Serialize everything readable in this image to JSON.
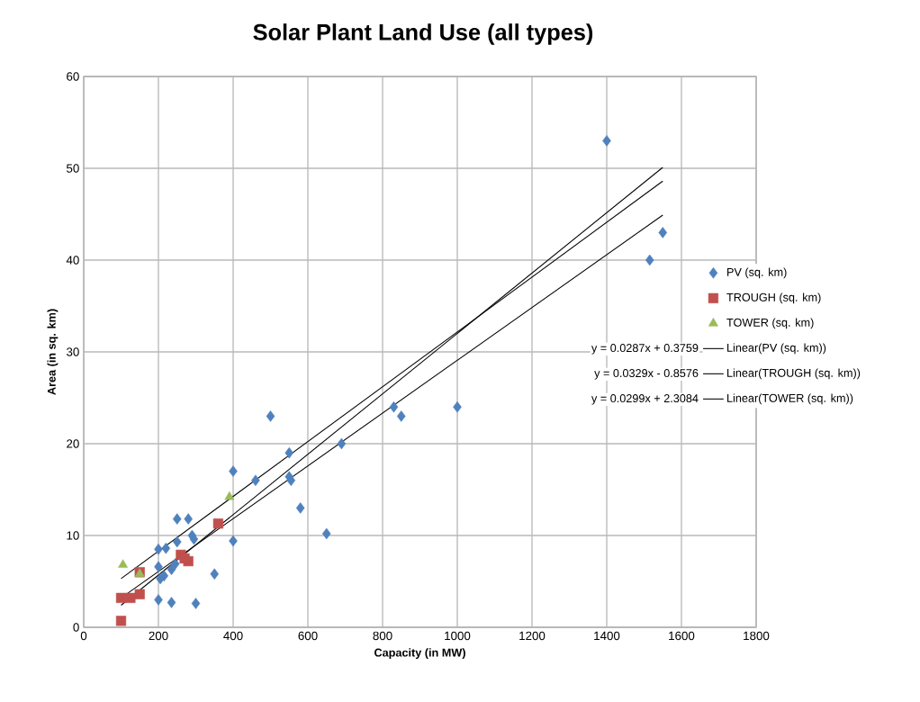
{
  "chart_data": {
    "type": "scatter",
    "title": "Solar Plant Land Use (all types)",
    "xlabel": "Capacity (in MW)",
    "ylabel": "Area (in sq. km)",
    "xlim": [
      0,
      1800
    ],
    "ylim": [
      0,
      60
    ],
    "xticks": [
      0,
      200,
      400,
      600,
      800,
      1000,
      1200,
      1400,
      1600,
      1800
    ],
    "yticks": [
      0,
      10,
      20,
      30,
      40,
      50,
      60
    ],
    "grid": true,
    "legend": "right",
    "annotations": [
      "y = 0.0287x + 0.3759",
      "y = 0.0329x - 0.8576",
      "y = 0.0299x + 2.3084"
    ],
    "series": [
      {
        "name": "PV (sq. km)",
        "marker": "diamond",
        "color": "#4f81bd",
        "x": [
          1400,
          1550,
          1515,
          1000,
          830,
          850,
          500,
          690,
          550,
          400,
          460,
          550,
          555,
          580,
          650,
          400,
          250,
          280,
          290,
          295,
          250,
          200,
          220,
          200,
          235,
          245,
          205,
          215,
          350,
          200,
          235,
          300
        ],
        "values": [
          53,
          43,
          40,
          24,
          24,
          23,
          23,
          20,
          19,
          17,
          16,
          16.4,
          16,
          13,
          10.2,
          9.4,
          11.8,
          11.8,
          10,
          9.6,
          9.3,
          8.5,
          8.6,
          6.6,
          6.3,
          6.9,
          5.3,
          5.6,
          5.8,
          3,
          2.7,
          2.6
        ]
      },
      {
        "name": "TROUGH (sq. km)",
        "marker": "square",
        "color": "#c0504d",
        "x": [
          360,
          260,
          280,
          270,
          150,
          150,
          100,
          125,
          100
        ],
        "values": [
          11.3,
          7.9,
          7.2,
          7.5,
          6,
          3.6,
          3.2,
          3.2,
          0.7
        ]
      },
      {
        "name": "TOWER (sq. km)",
        "marker": "triangle",
        "color": "#9bbb59",
        "x": [
          105,
          150,
          390
        ],
        "values": [
          6.8,
          5.8,
          14.2
        ]
      },
      {
        "name": "Linear(PV (sq. km))",
        "type": "line",
        "marker": "none",
        "color": "#000000",
        "x": [
          100,
          1550
        ],
        "values": [
          3.2,
          44.9
        ]
      },
      {
        "name": "Linear(TROUGH (sq. km))",
        "type": "line",
        "marker": "none",
        "color": "#000000",
        "x": [
          100,
          1550
        ],
        "values": [
          2.4,
          50.1
        ]
      },
      {
        "name": "Linear(TOWER (sq. km))",
        "type": "line",
        "marker": "none",
        "color": "#000000",
        "x": [
          100,
          1550
        ],
        "values": [
          5.3,
          48.6
        ]
      }
    ]
  }
}
